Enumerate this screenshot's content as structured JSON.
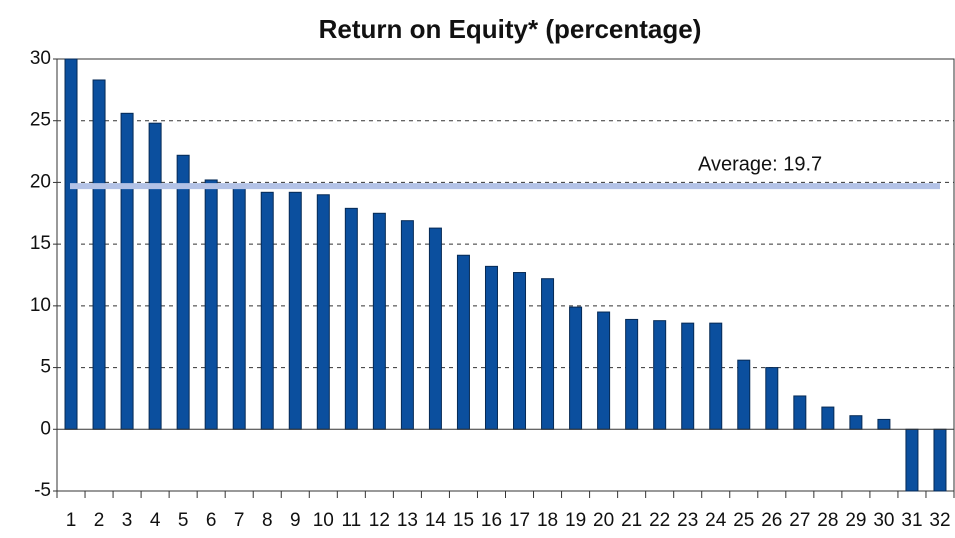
{
  "chart_data": {
    "type": "bar",
    "title": "Return on Equity* (percentage)",
    "categories": [
      "1",
      "2",
      "3",
      "4",
      "5",
      "6",
      "7",
      "8",
      "9",
      "10",
      "11",
      "12",
      "13",
      "14",
      "15",
      "16",
      "17",
      "18",
      "19",
      "20",
      "21",
      "22",
      "23",
      "24",
      "25",
      "26",
      "27",
      "28",
      "29",
      "30",
      "31",
      "32"
    ],
    "values": [
      30,
      28.3,
      25.6,
      24.8,
      22.2,
      20.2,
      19.7,
      19.2,
      19.2,
      19.0,
      17.9,
      17.5,
      16.9,
      16.3,
      14.1,
      13.2,
      12.7,
      12.2,
      9.9,
      9.5,
      8.9,
      8.8,
      8.6,
      8.6,
      5.6,
      5.0,
      2.7,
      1.8,
      1.1,
      0.8,
      -5,
      -5
    ],
    "color": "#0b4f9e",
    "ylim": [
      -5,
      30
    ],
    "yticks": [
      -5,
      0,
      5,
      10,
      15,
      20,
      25,
      30
    ],
    "grid": true,
    "average": {
      "value": 19.7,
      "label": "Average: 19.7",
      "color": "#b3c2e6"
    }
  }
}
